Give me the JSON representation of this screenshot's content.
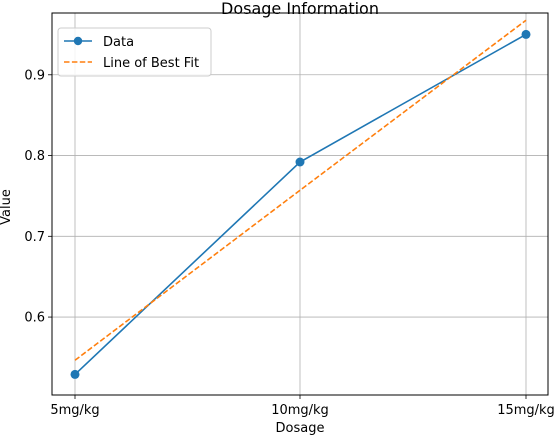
{
  "chart_data": {
    "type": "line",
    "title": "Dosage Information",
    "xlabel": "Dosage",
    "ylabel": "Value",
    "categories": [
      "5mg/kg",
      "10mg/kg",
      "15mg/kg"
    ],
    "ylim": [
      0.5035,
      0.9765
    ],
    "yticks": [
      0.6,
      0.7,
      0.8,
      0.9
    ],
    "grid": true,
    "legend": "top-left",
    "series": [
      {
        "name": "Data",
        "values": [
          0.529,
          0.792,
          0.95
        ],
        "color": "#1f77b4",
        "style": "solid",
        "marker": "circle"
      },
      {
        "name": "Line of Best Fit",
        "values": [
          0.5465,
          0.757,
          0.9675
        ],
        "color": "#ff7f0e",
        "style": "dashed",
        "marker": "none"
      }
    ]
  }
}
